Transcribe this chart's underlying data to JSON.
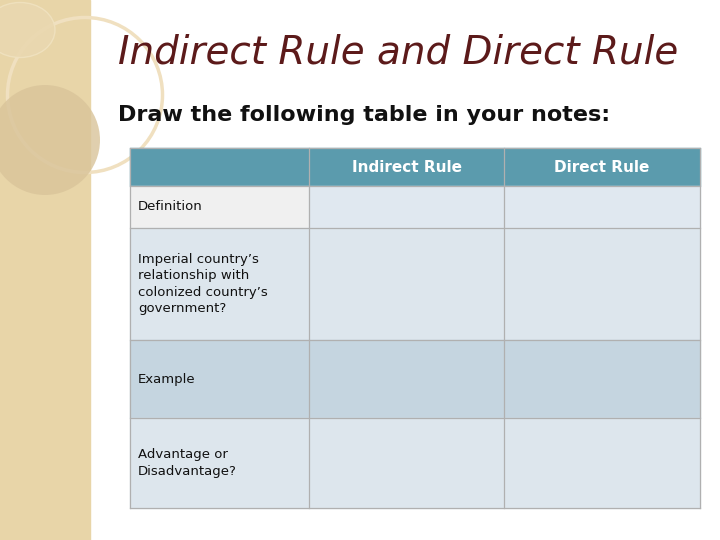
{
  "title": "Indirect Rule and Direct Rule",
  "subtitle": "Draw the following table in your notes:",
  "title_color": "#5C1A1A",
  "subtitle_color": "#111111",
  "background_color": "#ffffff",
  "left_panel_color": "#E8D5A8",
  "circle1_color": "#EAD9B5",
  "circle2_color": "#EAD9B5",
  "header_color": "#5B9BAD",
  "header_text_color": "#ffffff",
  "col_headers": [
    "",
    "Indirect Rule",
    "Direct Rule"
  ],
  "row_labels": [
    "Definition",
    "Imperial country’s\nrelationship with\ncolonized country’s\ngovernment?",
    "Example",
    "Advantage or\nDisadvantage?"
  ],
  "row_label_color": "#111111",
  "row_bg_col0": [
    "#f0f0f0",
    "#dde6ed",
    "#c5d5e0",
    "#dde6ed"
  ],
  "row_bg_col12": [
    "#e0e8f0",
    "#dde6ed",
    "#c5d5e0",
    "#dde6ed"
  ]
}
